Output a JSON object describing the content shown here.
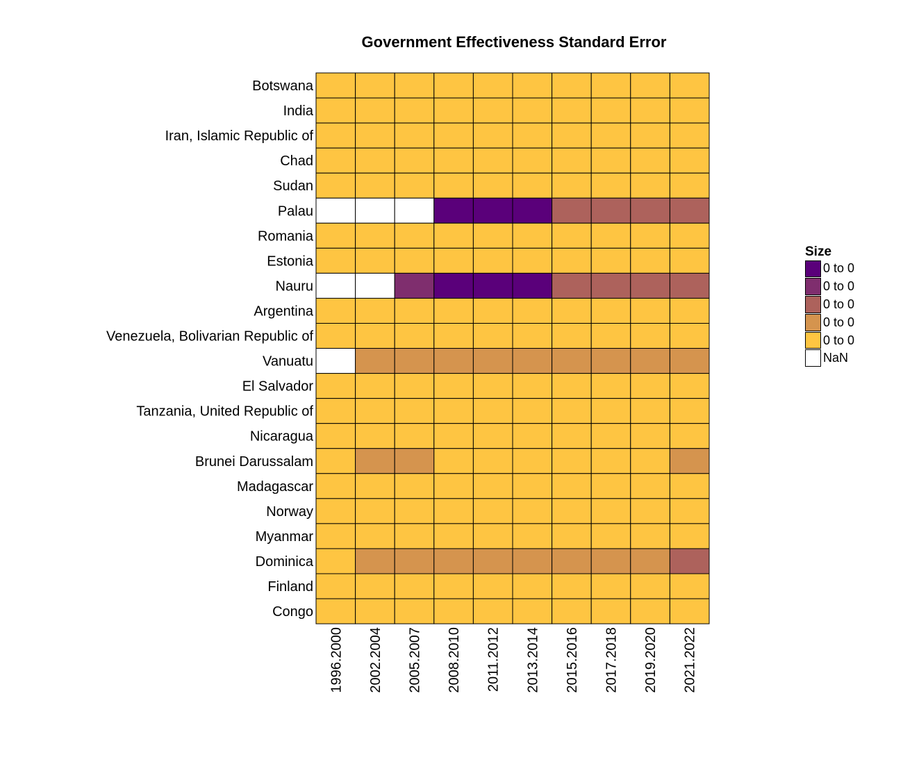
{
  "chart_data": {
    "type": "heatmap",
    "title": "Government Effectiveness Standard Error",
    "xlabel": "",
    "ylabel": "",
    "x_categories": [
      "1996.2000",
      "2002.2004",
      "2005.2007",
      "2008.2010",
      "2011.2012",
      "2013.2014",
      "2015.2016",
      "2017.2018",
      "2019.2020",
      "2021.2022"
    ],
    "y_categories": [
      "Botswana",
      "India",
      "Iran, Islamic Republic of",
      "Chad",
      "Sudan",
      "Palau",
      "Romania",
      "Estonia",
      "Nauru",
      "Argentina",
      "Venezuela, Bolivarian Republic of",
      "Vanuatu",
      "El Salvador",
      "Tanzania, United Republic of",
      "Nicaragua",
      "Brunei Darussalam",
      "Madagascar",
      "Norway",
      "Myanmar",
      "Dominica",
      "Finland",
      "Congo"
    ],
    "values": [
      [
        4,
        4,
        4,
        4,
        4,
        4,
        4,
        4,
        4,
        4
      ],
      [
        4,
        4,
        4,
        4,
        4,
        4,
        4,
        4,
        4,
        4
      ],
      [
        4,
        4,
        4,
        4,
        4,
        4,
        4,
        4,
        4,
        4
      ],
      [
        4,
        4,
        4,
        4,
        4,
        4,
        4,
        4,
        4,
        4
      ],
      [
        4,
        4,
        4,
        4,
        4,
        4,
        4,
        4,
        4,
        4
      ],
      [
        null,
        null,
        null,
        0,
        0,
        0,
        2,
        2,
        2,
        2
      ],
      [
        4,
        4,
        4,
        4,
        4,
        4,
        4,
        4,
        4,
        4
      ],
      [
        4,
        4,
        4,
        4,
        4,
        4,
        4,
        4,
        4,
        4
      ],
      [
        null,
        null,
        1,
        0,
        0,
        0,
        2,
        2,
        2,
        2
      ],
      [
        4,
        4,
        4,
        4,
        4,
        4,
        4,
        4,
        4,
        4
      ],
      [
        4,
        4,
        4,
        4,
        4,
        4,
        4,
        4,
        4,
        4
      ],
      [
        null,
        3,
        3,
        3,
        3,
        3,
        3,
        3,
        3,
        3
      ],
      [
        4,
        4,
        4,
        4,
        4,
        4,
        4,
        4,
        4,
        4
      ],
      [
        4,
        4,
        4,
        4,
        4,
        4,
        4,
        4,
        4,
        4
      ],
      [
        4,
        4,
        4,
        4,
        4,
        4,
        4,
        4,
        4,
        4
      ],
      [
        4,
        3,
        3,
        4,
        4,
        4,
        4,
        4,
        4,
        3
      ],
      [
        4,
        4,
        4,
        4,
        4,
        4,
        4,
        4,
        4,
        4
      ],
      [
        4,
        4,
        4,
        4,
        4,
        4,
        4,
        4,
        4,
        4
      ],
      [
        4,
        4,
        4,
        4,
        4,
        4,
        4,
        4,
        4,
        4
      ],
      [
        4,
        3,
        3,
        3,
        3,
        3,
        3,
        3,
        3,
        2
      ],
      [
        4,
        4,
        4,
        4,
        4,
        4,
        4,
        4,
        4,
        4
      ],
      [
        4,
        4,
        4,
        4,
        4,
        4,
        4,
        4,
        4,
        4
      ]
    ],
    "legend": {
      "title": "Size",
      "position": "right",
      "bins": [
        {
          "label": "0 to 0",
          "color": "#5a007a"
        },
        {
          "label": "0 to 0",
          "color": "#7f2e6e"
        },
        {
          "label": "0 to 0",
          "color": "#ad625c"
        },
        {
          "label": "0 to 0",
          "color": "#d5944e"
        },
        {
          "label": "0 to 0",
          "color": "#fec542"
        }
      ],
      "nan": {
        "label": "NaN",
        "color": "#ffffff"
      }
    }
  }
}
